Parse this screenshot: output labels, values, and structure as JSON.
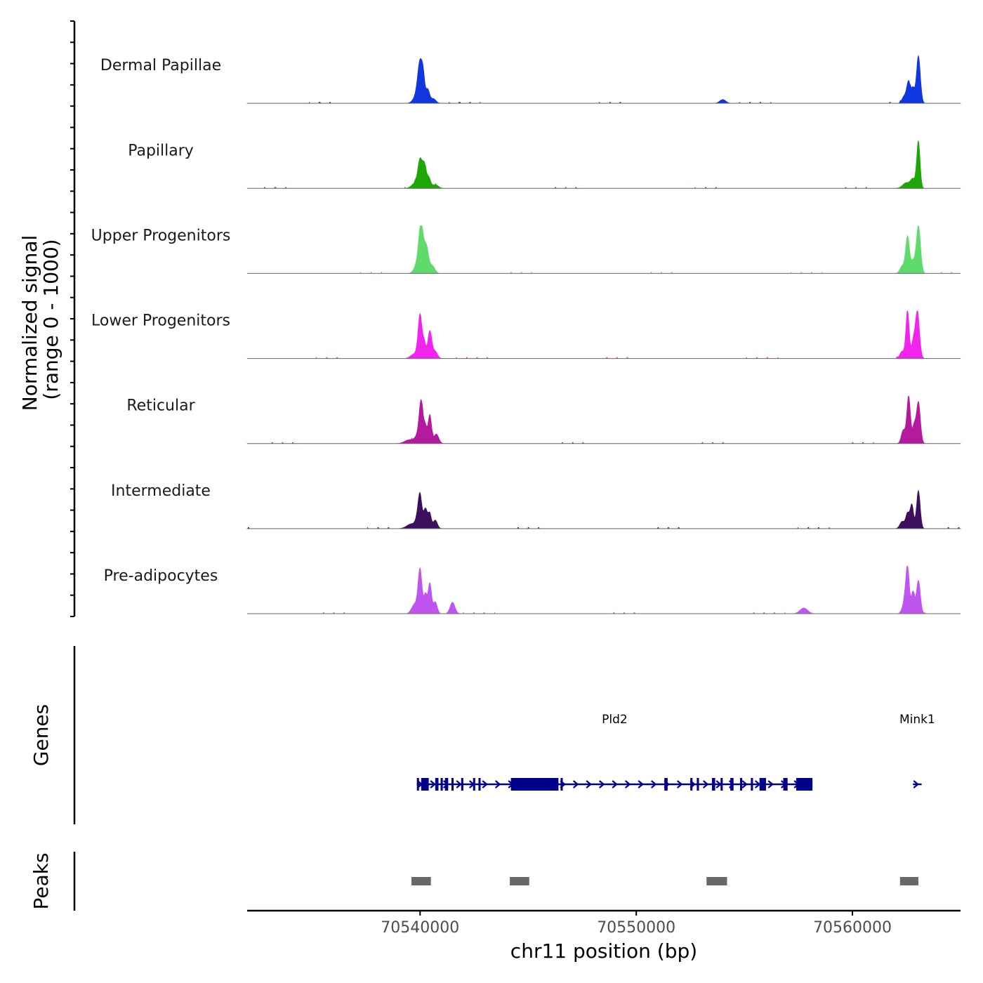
{
  "chart_data": {
    "type": "area",
    "chromosome": "chr11",
    "x_range": [
      70532000,
      70565000
    ],
    "x_ticks": [
      70540000,
      70550000,
      70560000
    ],
    "x_tick_labels": [
      "70540000",
      "70550000",
      "70560000"
    ],
    "xlabel": "chr11 position (bp)",
    "ylabel_line1": "Normalized signal",
    "ylabel_line2": "(range 0 - 1000)",
    "y_range": [
      0,
      1000
    ],
    "series": [
      {
        "name": "Dermal Papillae",
        "color": "#1036E0",
        "peaks": [
          {
            "pos": 70539900,
            "height": 200,
            "width": 250
          },
          {
            "pos": 70540000,
            "height": 720,
            "width": 150
          },
          {
            "pos": 70540150,
            "height": 400,
            "width": 100
          },
          {
            "pos": 70540350,
            "height": 280,
            "width": 120
          },
          {
            "pos": 70540600,
            "height": 100,
            "width": 180
          },
          {
            "pos": 70554000,
            "height": 80,
            "width": 200
          },
          {
            "pos": 70562400,
            "height": 150,
            "width": 150
          },
          {
            "pos": 70562600,
            "height": 450,
            "width": 120
          },
          {
            "pos": 70562800,
            "height": 300,
            "width": 100
          },
          {
            "pos": 70563050,
            "height": 1000,
            "width": 130
          }
        ]
      },
      {
        "name": "Papillary",
        "color": "#1EA506",
        "peaks": [
          {
            "pos": 70539800,
            "height": 120,
            "width": 250
          },
          {
            "pos": 70540000,
            "height": 550,
            "width": 140
          },
          {
            "pos": 70540200,
            "height": 460,
            "width": 120
          },
          {
            "pos": 70540400,
            "height": 220,
            "width": 120
          },
          {
            "pos": 70540700,
            "height": 80,
            "width": 200
          },
          {
            "pos": 70562500,
            "height": 120,
            "width": 250
          },
          {
            "pos": 70562800,
            "height": 180,
            "width": 150
          },
          {
            "pos": 70563050,
            "height": 1000,
            "width": 110
          }
        ]
      },
      {
        "name": "Upper Progenitors",
        "color": "#5EDB6B",
        "peaks": [
          {
            "pos": 70539850,
            "height": 150,
            "width": 200
          },
          {
            "pos": 70540050,
            "height": 1000,
            "width": 160
          },
          {
            "pos": 70540300,
            "height": 500,
            "width": 130
          },
          {
            "pos": 70540550,
            "height": 170,
            "width": 180
          },
          {
            "pos": 70562300,
            "height": 150,
            "width": 150
          },
          {
            "pos": 70562550,
            "height": 780,
            "width": 130
          },
          {
            "pos": 70562800,
            "height": 240,
            "width": 120
          },
          {
            "pos": 70563050,
            "height": 1000,
            "width": 140
          }
        ]
      },
      {
        "name": "Lower Progenitors",
        "color": "#F223EE",
        "peaks": [
          {
            "pos": 70539750,
            "height": 100,
            "width": 250
          },
          {
            "pos": 70540000,
            "height": 900,
            "width": 130
          },
          {
            "pos": 70540200,
            "height": 300,
            "width": 100
          },
          {
            "pos": 70540450,
            "height": 580,
            "width": 130
          },
          {
            "pos": 70540700,
            "height": 150,
            "width": 150
          },
          {
            "pos": 70562300,
            "height": 150,
            "width": 150
          },
          {
            "pos": 70562550,
            "height": 1000,
            "width": 110
          },
          {
            "pos": 70562800,
            "height": 300,
            "width": 100
          },
          {
            "pos": 70563000,
            "height": 1000,
            "width": 140
          }
        ]
      },
      {
        "name": "Reticular",
        "color": "#B5199E",
        "peaks": [
          {
            "pos": 70539500,
            "height": 80,
            "width": 300
          },
          {
            "pos": 70539900,
            "height": 150,
            "width": 200
          },
          {
            "pos": 70540050,
            "height": 830,
            "width": 130
          },
          {
            "pos": 70540250,
            "height": 320,
            "width": 100
          },
          {
            "pos": 70540450,
            "height": 600,
            "width": 110
          },
          {
            "pos": 70540750,
            "height": 200,
            "width": 160
          },
          {
            "pos": 70562350,
            "height": 280,
            "width": 130
          },
          {
            "pos": 70562600,
            "height": 1000,
            "width": 120
          },
          {
            "pos": 70562850,
            "height": 350,
            "width": 100
          },
          {
            "pos": 70563050,
            "height": 880,
            "width": 130
          }
        ]
      },
      {
        "name": "Intermediate",
        "color": "#3D0E5C",
        "peaks": [
          {
            "pos": 70539600,
            "height": 100,
            "width": 300
          },
          {
            "pos": 70539900,
            "height": 200,
            "width": 150
          },
          {
            "pos": 70540000,
            "height": 600,
            "width": 120
          },
          {
            "pos": 70540250,
            "height": 420,
            "width": 130
          },
          {
            "pos": 70540450,
            "height": 300,
            "width": 100
          },
          {
            "pos": 70540700,
            "height": 180,
            "width": 140
          },
          {
            "pos": 70562300,
            "height": 150,
            "width": 150
          },
          {
            "pos": 70562550,
            "height": 320,
            "width": 120
          },
          {
            "pos": 70562750,
            "height": 500,
            "width": 110
          },
          {
            "pos": 70563050,
            "height": 800,
            "width": 120
          }
        ]
      },
      {
        "name": "Pre-adipocytes",
        "color": "#BE55EE",
        "peaks": [
          {
            "pos": 70539750,
            "height": 200,
            "width": 200
          },
          {
            "pos": 70540000,
            "height": 920,
            "width": 130
          },
          {
            "pos": 70540250,
            "height": 400,
            "width": 100
          },
          {
            "pos": 70540450,
            "height": 640,
            "width": 110
          },
          {
            "pos": 70540700,
            "height": 250,
            "width": 130
          },
          {
            "pos": 70541500,
            "height": 240,
            "width": 160
          },
          {
            "pos": 70557750,
            "height": 120,
            "width": 250
          },
          {
            "pos": 70562400,
            "height": 200,
            "width": 150
          },
          {
            "pos": 70562550,
            "height": 950,
            "width": 120
          },
          {
            "pos": 70562800,
            "height": 450,
            "width": 100
          },
          {
            "pos": 70563050,
            "height": 700,
            "width": 130
          }
        ]
      }
    ],
    "genes": {
      "track_label": "Genes",
      "color": "#00008B",
      "items": [
        {
          "name": "Pld2",
          "start": 70539850,
          "end": 70558150,
          "strand": "+",
          "exons": [
            [
              70539850,
              70539950
            ],
            [
              70540050,
              70540400
            ],
            [
              70540700,
              70540850
            ],
            [
              70540950,
              70541050
            ],
            [
              70541150,
              70541300
            ],
            [
              70541450,
              70541550
            ],
            [
              70541900,
              70542000
            ],
            [
              70542450,
              70542550
            ],
            [
              70542700,
              70542800
            ],
            [
              70544200,
              70546400
            ],
            [
              70546500,
              70546600
            ],
            [
              70551300,
              70551450
            ],
            [
              70552500,
              70552600
            ],
            [
              70552800,
              70552900
            ],
            [
              70553500,
              70553650
            ],
            [
              70553900,
              70554000
            ],
            [
              70554350,
              70554500
            ],
            [
              70554800,
              70554900
            ],
            [
              70555300,
              70555400
            ],
            [
              70555700,
              70556000
            ],
            [
              70556800,
              70557000
            ],
            [
              70557400,
              70558150
            ]
          ]
        },
        {
          "name": "Mink1",
          "start": 70562800,
          "end": 70563200,
          "strand": "+",
          "exons": []
        }
      ]
    },
    "peaks_track": {
      "track_label": "Peaks",
      "color": "#696969",
      "regions": [
        [
          70539600,
          70540500
        ],
        [
          70544150,
          70545050
        ],
        [
          70553250,
          70554200
        ],
        [
          70562200,
          70563050
        ]
      ]
    }
  }
}
